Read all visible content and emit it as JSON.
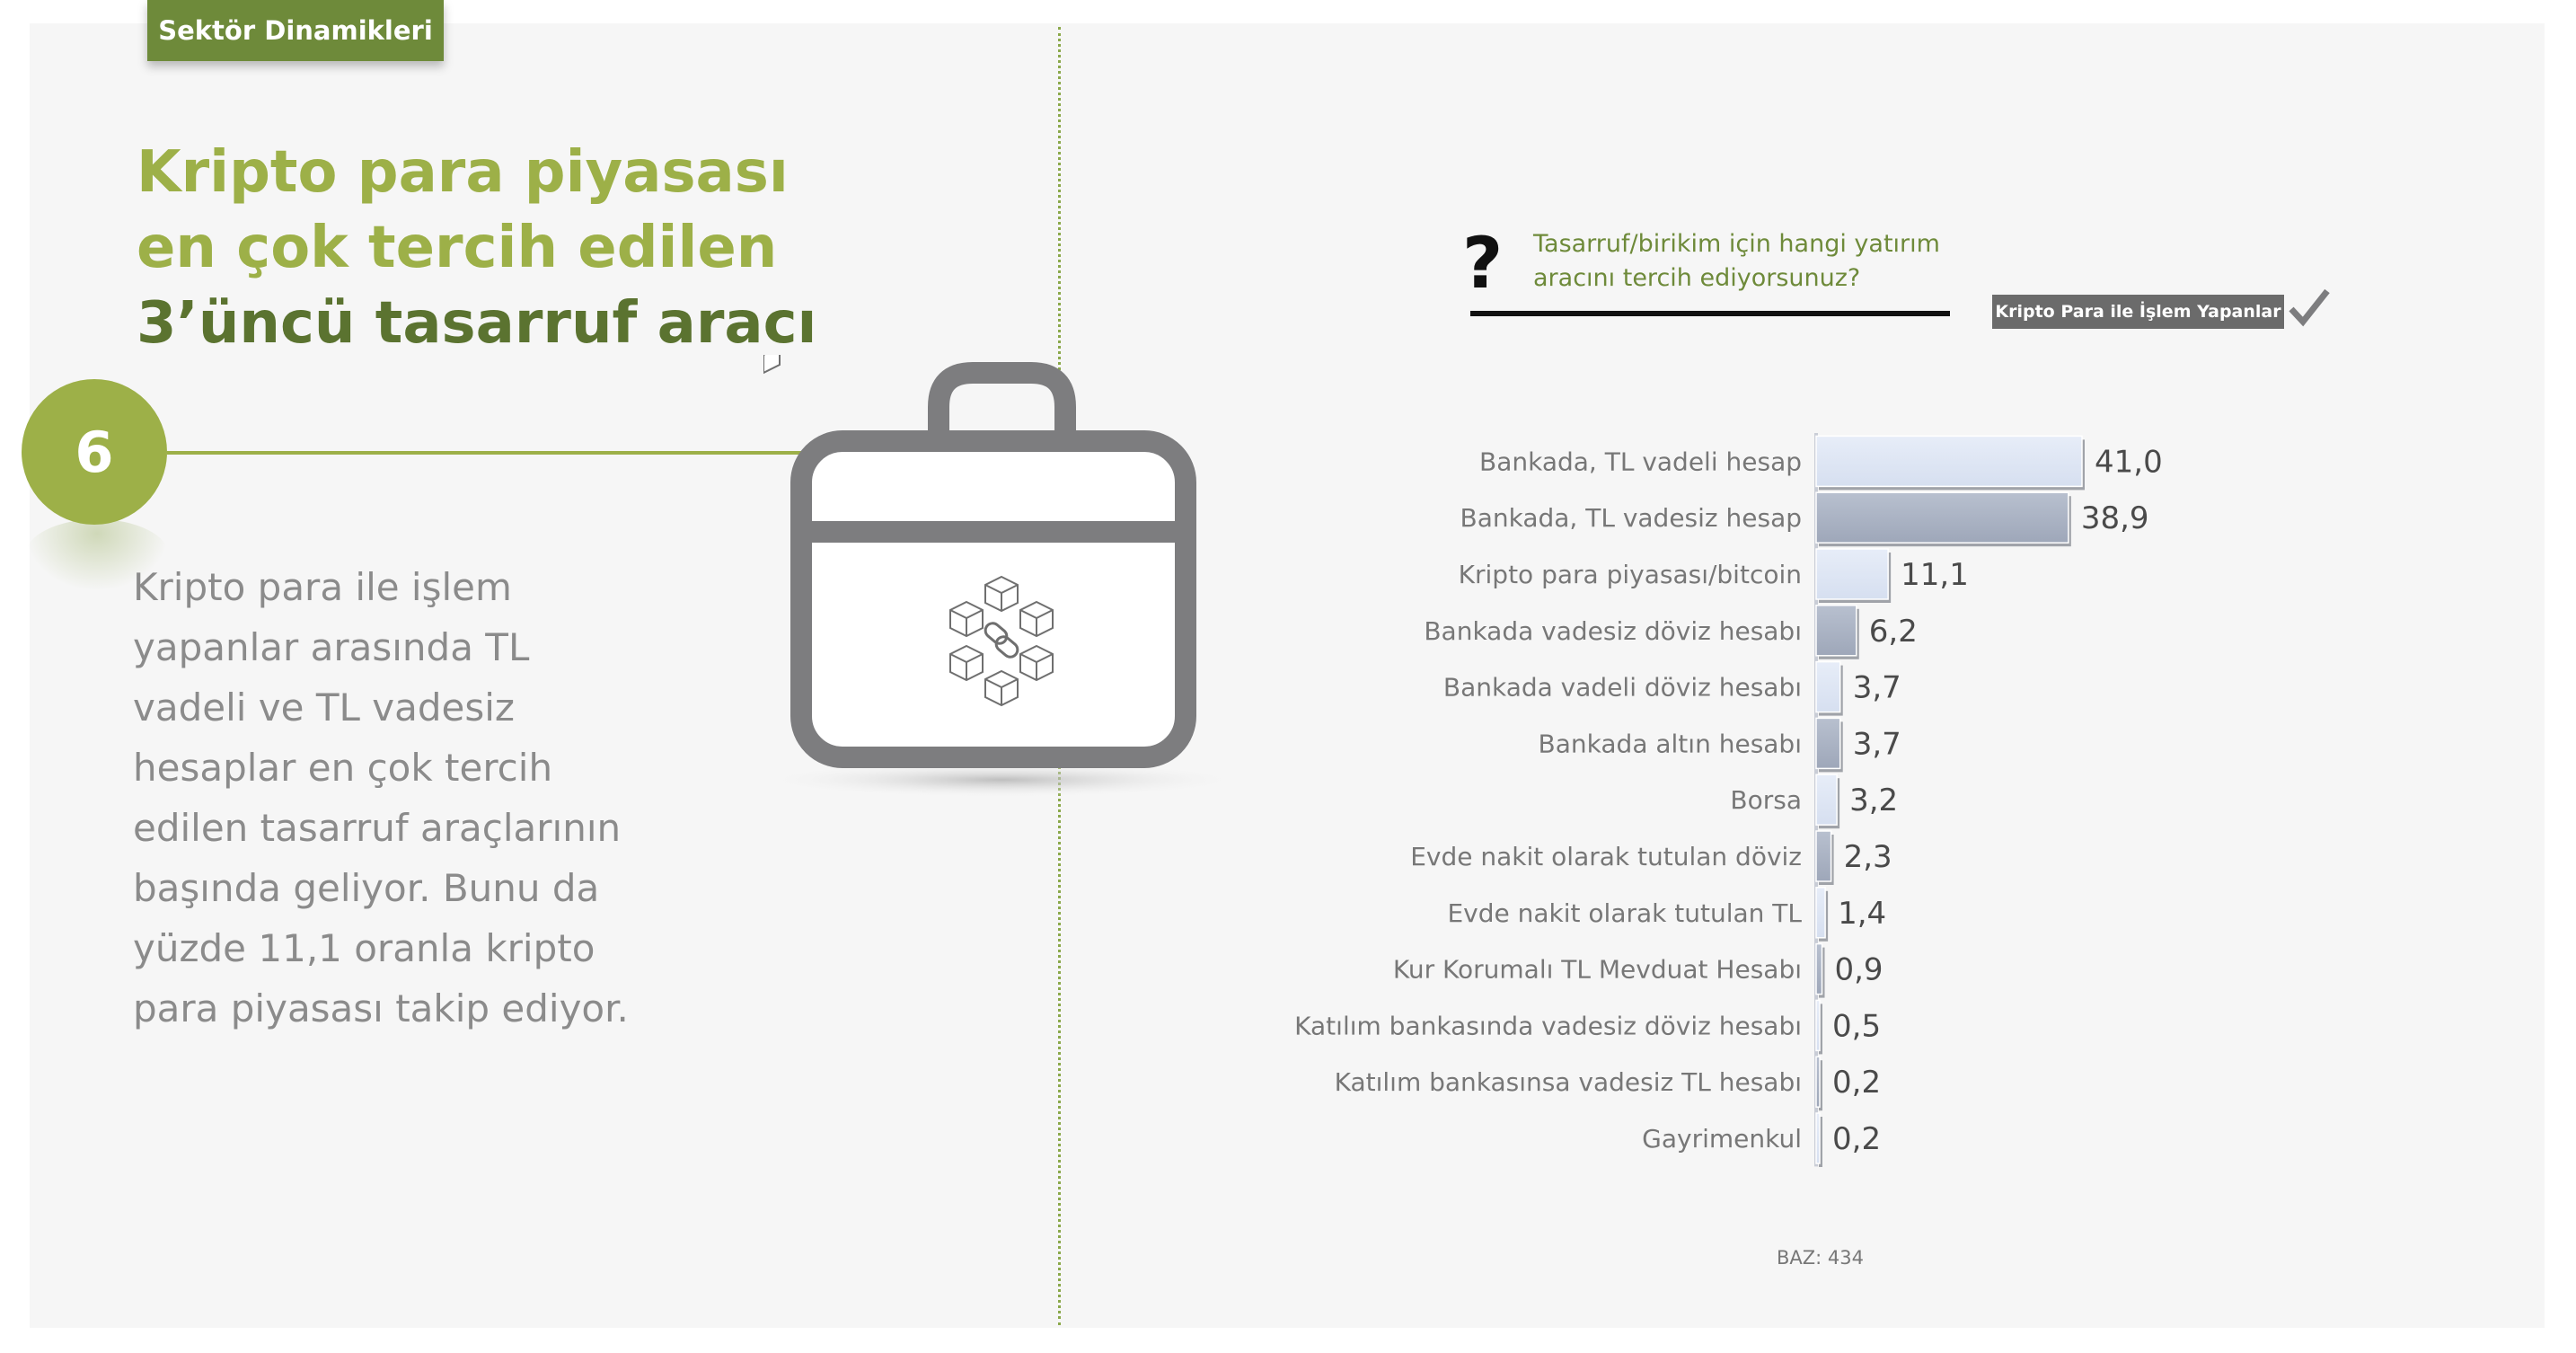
{
  "section_tag": "Sektör Dinamikleri",
  "title": {
    "line1": "Kripto para piyasası",
    "line2": "en çok tercih edilen",
    "line3": "3’üncü tasarruf aracı"
  },
  "badge_number": "6",
  "paragraph_lines": [
    "Kripto para ile işlem",
    "yapanlar arasında TL",
    "vadeli ve TL vadesiz",
    "hesaplar  en çok tercih",
    "edilen tasarruf araçlarının",
    "başında geliyor. Bunu da",
    "yüzde 11,1 oranla kripto",
    "para piyasası takip ediyor."
  ],
  "question": {
    "mark": "?",
    "line1": "Tasarruf/birikim için hangi yatırım",
    "line2": "aracını tercih ediyorsunuz?"
  },
  "segment_badge": "Kripto Para ile İşlem Yapanlar",
  "base_note": "BAZ: 434",
  "colors": {
    "accent_light": "#9db048",
    "accent_dark": "#6e8a3a",
    "bar_light": "#d6dff0",
    "bar_dark": "#9ea7b9",
    "icon_gray": "#7d7d7f"
  },
  "chart_data": {
    "type": "bar",
    "orientation": "horizontal",
    "title": "Tasarruf/birikim için hangi yatırım aracını tercih ediyorsunuz?",
    "categories": [
      "Bankada, TL vadeli hesap",
      "Bankada, TL vadesiz hesap",
      "Kripto para piyasası/bitcoin",
      "Bankada vadesiz döviz hesabı",
      "Bankada vadeli döviz hesabı",
      "Bankada altın hesabı",
      "Borsa",
      "Evde nakit olarak tutulan döviz",
      "Evde nakit olarak tutulan TL",
      "Kur Korumalı TL Mevduat Hesabı",
      "Katılım bankasında vadesiz döviz hesabı",
      "Katılım bankasınsa vadesiz TL hesabı",
      "Gayrimenkul"
    ],
    "values": [
      41.0,
      38.9,
      11.1,
      6.2,
      3.7,
      3.7,
      3.2,
      2.3,
      1.4,
      0.9,
      0.5,
      0.2,
      0.2
    ],
    "value_labels": [
      "41,0",
      "38,9",
      "11,1",
      "6,2",
      "3,7",
      "3,7",
      "3,2",
      "2,3",
      "1,4",
      "0,9",
      "0,5",
      "0,2",
      "0,2"
    ],
    "xlim": [
      0,
      41
    ],
    "unit": "%"
  }
}
